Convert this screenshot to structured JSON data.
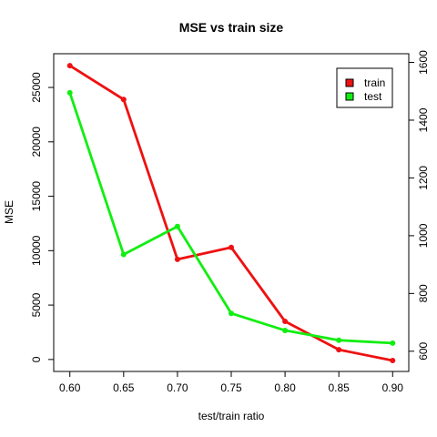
{
  "chart_data": {
    "type": "line",
    "title": "MSE vs train size",
    "xlabel": "test/train ratio",
    "ylabel": "MSE",
    "x": [
      0.6,
      0.65,
      0.7,
      0.75,
      0.8,
      0.85,
      0.9
    ],
    "x_tick_labels": [
      "0.60",
      "0.65",
      "0.70",
      "0.75",
      "0.80",
      "0.85",
      "0.90"
    ],
    "xlim": [
      0.585,
      0.915
    ],
    "y_left": {
      "ticks": [
        0,
        5000,
        10000,
        15000,
        20000,
        25000
      ],
      "lim": [
        -1100,
        28100
      ]
    },
    "y_right": {
      "ticks": [
        600,
        800,
        1000,
        1200,
        1400,
        1600
      ],
      "lim": [
        530,
        1630
      ]
    },
    "series": [
      {
        "name": "train",
        "axis": "left",
        "color": "#ee1111",
        "values": [
          27000,
          23900,
          9200,
          10300,
          3500,
          900,
          -100
        ]
      },
      {
        "name": "test",
        "axis": "right",
        "color": "#11ee11",
        "values": [
          1495,
          935,
          1032,
          731,
          672,
          638,
          628
        ]
      }
    ],
    "legend": {
      "position": "top-right",
      "entries": [
        "train",
        "test"
      ]
    },
    "grid": false
  }
}
